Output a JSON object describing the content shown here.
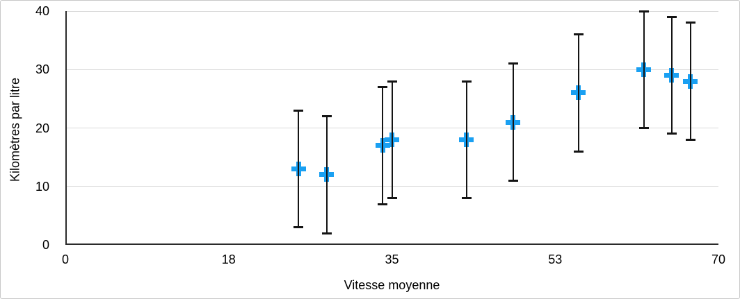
{
  "chart_data": {
    "type": "scatter",
    "title": "",
    "xlabel": "Vitesse moyenne",
    "ylabel": "Kilomètres par litre",
    "xlim": [
      0,
      70
    ],
    "ylim": [
      0,
      40
    ],
    "x_ticks": [
      {
        "pos": 0,
        "label": "0"
      },
      {
        "pos": 17.5,
        "label": "18"
      },
      {
        "pos": 35,
        "label": "35"
      },
      {
        "pos": 52.5,
        "label": "53"
      },
      {
        "pos": 70,
        "label": "70"
      }
    ],
    "y_ticks": [
      {
        "pos": 0,
        "label": "0"
      },
      {
        "pos": 10,
        "label": "10"
      },
      {
        "pos": 20,
        "label": "20"
      },
      {
        "pos": 30,
        "label": "30"
      },
      {
        "pos": 40,
        "label": "40"
      }
    ],
    "grid": "horizontal-only",
    "legend": "none",
    "marker": {
      "shape": "plus",
      "size": 21
    },
    "error_bars": {
      "type": "symmetric",
      "value": 10
    },
    "series": [
      {
        "points": [
          {
            "x": 25,
            "y": 13
          },
          {
            "x": 28,
            "y": 12
          },
          {
            "x": 34,
            "y": 17
          },
          {
            "x": 35,
            "y": 18
          },
          {
            "x": 43,
            "y": 18
          },
          {
            "x": 48,
            "y": 21
          },
          {
            "x": 55,
            "y": 26
          },
          {
            "x": 62,
            "y": 30
          },
          {
            "x": 65,
            "y": 29
          },
          {
            "x": 67,
            "y": 28
          }
        ]
      }
    ]
  },
  "colors": {
    "marker": "#1aa0f2",
    "error_bar": "#141414",
    "axis": "#2b2b2b",
    "gridline": "#d9d9d9",
    "text": "#000000",
    "background": "#ffffff",
    "frame_border": "#c8c8c8"
  }
}
